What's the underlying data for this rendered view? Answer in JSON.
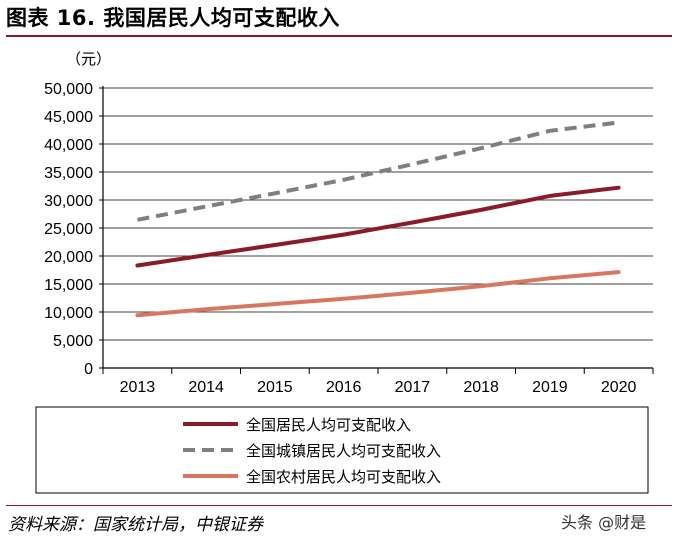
{
  "figure": {
    "title": "图表 16. 我国居民人均可支配收入",
    "source": "资料来源：国家统计局，中银证券",
    "watermark": "头条 @财是"
  },
  "chart_data": {
    "type": "line",
    "title": "",
    "ylabel": "（元）",
    "xlabel": "",
    "x": [
      "2013",
      "2014",
      "2015",
      "2016",
      "2017",
      "2018",
      "2019",
      "2020"
    ],
    "ylim": [
      0,
      50000
    ],
    "yticks": [
      0,
      5000,
      10000,
      15000,
      20000,
      25000,
      30000,
      35000,
      40000,
      45000,
      50000
    ],
    "ytick_labels": [
      "0",
      "5,000",
      "10,000",
      "15,000",
      "20,000",
      "25,000",
      "30,000",
      "35,000",
      "40,000",
      "45,000",
      "50,000"
    ],
    "grid": "horizontal",
    "legend_position": "bottom",
    "series": [
      {
        "name": "全国居民人均可支配收入",
        "color": "#8b1a2b",
        "style": "solid",
        "values": [
          18311,
          20167,
          21966,
          23821,
          25974,
          28228,
          30733,
          32189
        ]
      },
      {
        "name": "全国城镇居民人均可支配收入",
        "color": "#7f7f7f",
        "style": "dashed",
        "values": [
          26467,
          28844,
          31195,
          33616,
          36396,
          39251,
          42359,
          43834
        ]
      },
      {
        "name": "全国农村居民人均可支配收入",
        "color": "#d9765f",
        "style": "solid",
        "values": [
          9430,
          10489,
          11422,
          12363,
          13432,
          14617,
          16021,
          17131
        ]
      }
    ]
  }
}
